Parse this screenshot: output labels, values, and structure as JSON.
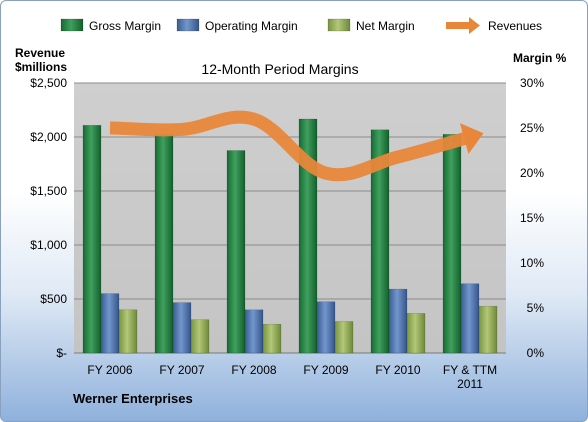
{
  "chart_data": {
    "type": "bar",
    "title": "12-Month Period Margins",
    "footer": "Werner Enterprises",
    "left_axis": {
      "label_line1": "Revenue",
      "label_line2": "$millions",
      "ylim": [
        0,
        2500
      ],
      "ticks": [
        "$-",
        "$500",
        "$1,000",
        "$1,500",
        "$2,000",
        "$2,500"
      ]
    },
    "right_axis": {
      "label": "Margin %",
      "ylim": [
        0,
        30
      ],
      "ticks": [
        "0%",
        "5%",
        "10%",
        "15%",
        "20%",
        "25%",
        "30%"
      ]
    },
    "categories": [
      [
        "FY 2006"
      ],
      [
        "FY 2007"
      ],
      [
        "FY 2008"
      ],
      [
        "FY 2009"
      ],
      [
        "FY 2010"
      ],
      [
        "FY & TTM",
        "2011"
      ]
    ],
    "series": [
      {
        "name": "Gross Margin",
        "axis": "right",
        "type": "bar",
        "color": "#1e7a3c",
        "values": [
          25.3,
          24.3,
          22.5,
          26.0,
          24.8,
          24.3
        ]
      },
      {
        "name": "Operating Margin",
        "axis": "right",
        "type": "bar",
        "color": "#4a6fa8",
        "values": [
          6.6,
          5.6,
          4.8,
          5.7,
          7.1,
          7.7
        ]
      },
      {
        "name": "Net Margin",
        "axis": "right",
        "type": "bar",
        "color": "#8faa4f",
        "values": [
          4.8,
          3.7,
          3.2,
          3.5,
          4.4,
          5.2
        ]
      },
      {
        "name": "Revenues",
        "axis": "left",
        "type": "line",
        "color": "#e8873a",
        "values": [
          2085,
          2070,
          2165,
          1665,
          1815,
          2000
        ]
      }
    ],
    "grid": true,
    "legend": "top"
  }
}
